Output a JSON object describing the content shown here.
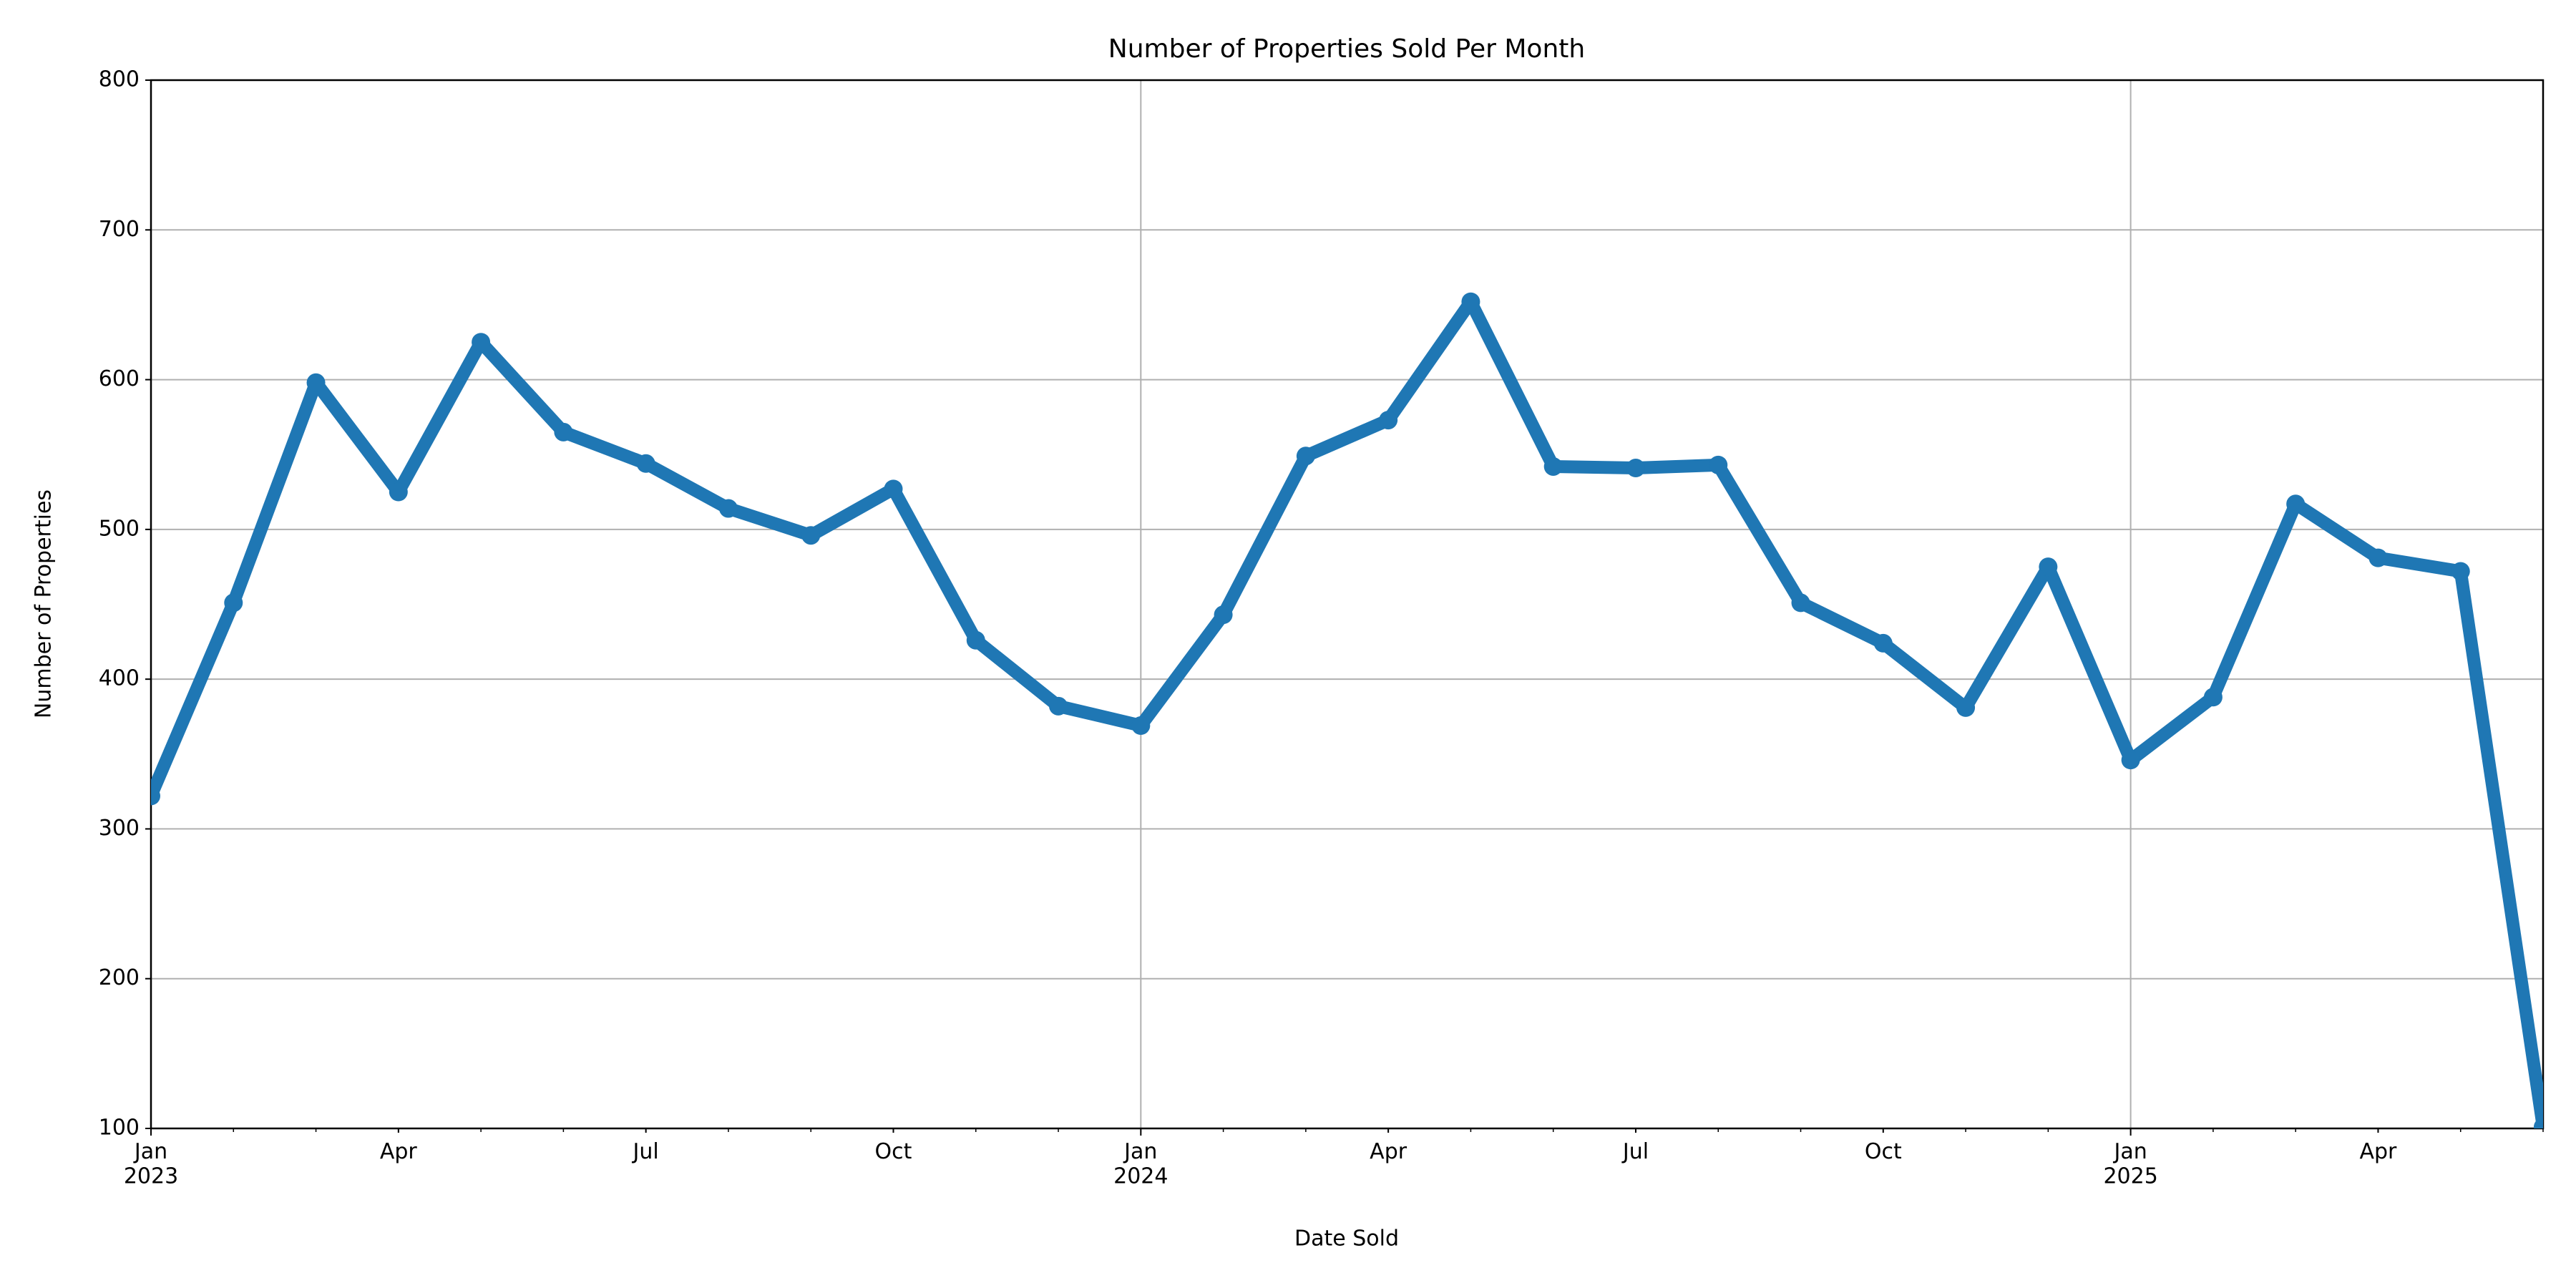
{
  "chart_data": {
    "type": "line",
    "title": "Number of Properties Sold Per Month",
    "xlabel": "Date Sold",
    "ylabel": "Number of Properties",
    "x": [
      "2023-01",
      "2023-02",
      "2023-03",
      "2023-04",
      "2023-05",
      "2023-06",
      "2023-07",
      "2023-08",
      "2023-09",
      "2023-10",
      "2023-11",
      "2023-12",
      "2024-01",
      "2024-02",
      "2024-03",
      "2024-04",
      "2024-05",
      "2024-06",
      "2024-07",
      "2024-08",
      "2024-09",
      "2024-10",
      "2024-11",
      "2024-12",
      "2025-01",
      "2025-02",
      "2025-03",
      "2025-04",
      "2025-05",
      "2025-06"
    ],
    "series": [
      {
        "name": "Number of Properties",
        "color": "#1f77b4",
        "values": [
          322,
          451,
          598,
          525,
          625,
          565,
          544,
          514,
          496,
          527,
          426,
          382,
          369,
          443,
          549,
          573,
          652,
          542,
          541,
          543,
          451,
          424,
          381,
          475,
          346,
          388,
          517,
          481,
          472,
          101
        ]
      }
    ],
    "xlim": [
      "2023-01",
      "2025-06"
    ],
    "xticks": [
      {
        "value": "2023-01",
        "label": "Jan\n2023"
      },
      {
        "value": "2023-04",
        "label": "Apr"
      },
      {
        "value": "2023-07",
        "label": "Jul"
      },
      {
        "value": "2023-10",
        "label": "Oct"
      },
      {
        "value": "2024-01",
        "label": "Jan\n2024"
      },
      {
        "value": "2024-04",
        "label": "Apr"
      },
      {
        "value": "2024-07",
        "label": "Jul"
      },
      {
        "value": "2024-10",
        "label": "Oct"
      },
      {
        "value": "2025-01",
        "label": "Jan\n2025"
      },
      {
        "value": "2025-04",
        "label": "Apr"
      }
    ],
    "ylim": [
      100,
      800
    ],
    "yticks": [
      100,
      200,
      300,
      400,
      500,
      600,
      700,
      800
    ],
    "grid": true
  }
}
